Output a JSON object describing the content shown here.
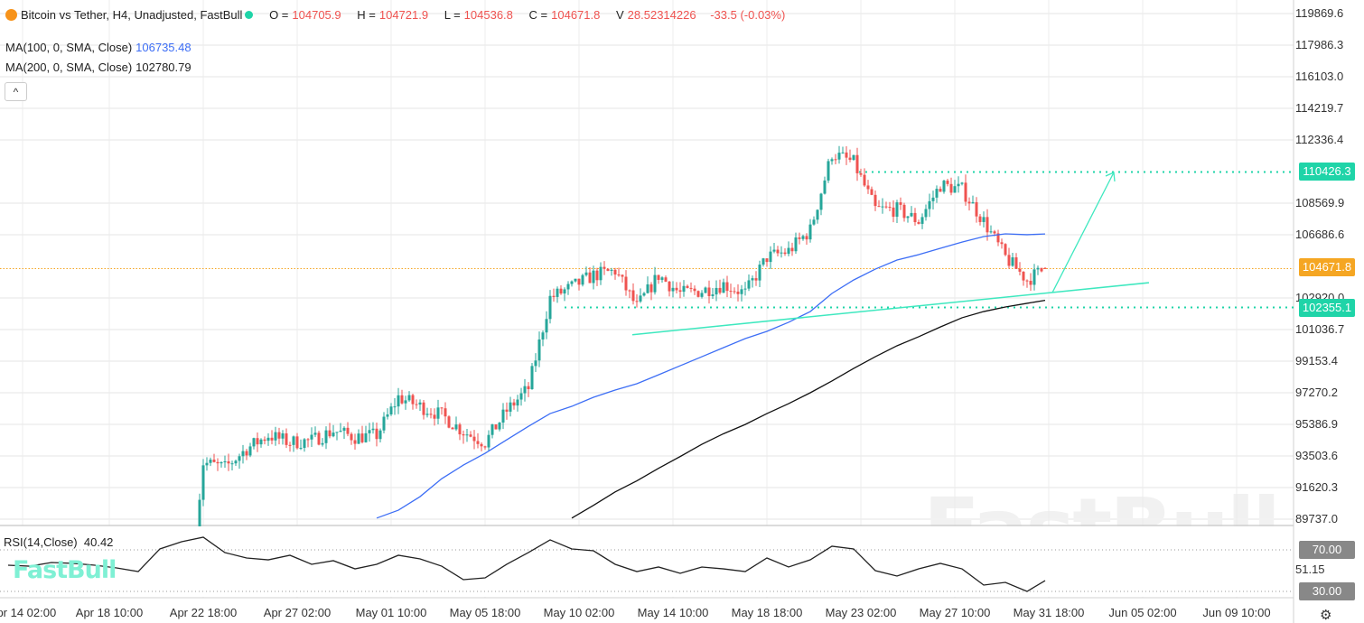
{
  "header": {
    "title": "Bitcoin vs Tether, H4, Unadjusted, FastBull",
    "open_label": "O =",
    "open": "104705.9",
    "high_label": "H =",
    "high": "104721.9",
    "low_label": "L =",
    "low": "104536.8",
    "close_label": "C =",
    "close": "104671.8",
    "volume_label": "V",
    "volume": "28.52314226",
    "change": "-33.5 (-0.03%)",
    "icon": "bitcoin-icon",
    "live_color": "#1fd4a8"
  },
  "indicators": {
    "ma100_label": "MA(100, 0, SMA, Close)",
    "ma100_value": "106735.48",
    "ma100_color": "#3d6ef5",
    "ma200_label": "MA(200, 0, SMA, Close)",
    "ma200_value": "102780.79",
    "ma200_color": "#111111",
    "collapse_label": "^",
    "rsi_label": "RSI(14,Close)",
    "rsi_value": "40.42"
  },
  "price_axis": [
    "119869.6",
    "117986.3",
    "116103.0",
    "114219.7",
    "112336.4",
    "110426.3",
    "108569.9",
    "106686.6",
    "104671.8",
    "102920.0",
    "102355.1",
    "101036.7",
    "99153.4",
    "97270.2",
    "95386.9",
    "93503.6",
    "91620.3",
    "89737.0"
  ],
  "rsi_axis": [
    "70.00",
    "51.15",
    "30.00"
  ],
  "price_tags": {
    "resistance": "110426.3",
    "last": "104671.8",
    "support": "102355.1",
    "resistance_color": "#1fd4a8",
    "last_color": "#f5a623",
    "support_color": "#1fd4a8",
    "rsi_tag_color": "#888888"
  },
  "time_axis": [
    "Apr 14 02:00",
    "Apr 18 10:00",
    "Apr 22 18:00",
    "Apr 27 02:00",
    "May 01 10:00",
    "May 05 18:00",
    "May 10 02:00",
    "May 14 10:00",
    "May 18 18:00",
    "May 23 02:00",
    "May 27 10:00",
    "May 31 18:00",
    "Jun 05 02:00",
    "Jun 09 10:00"
  ],
  "branding": {
    "logo": "FastBull",
    "watermark": "FastBull"
  },
  "settings_icon": "gear-icon",
  "chart_data": {
    "type": "candlestick",
    "timeframe": "H4",
    "up_color": "#26a69a",
    "down_color": "#ef5350",
    "y_range": [
      88800,
      120500
    ],
    "closes": [
      [
        "Apr 22 10:00",
        89200
      ],
      [
        "Apr 22 18:00",
        93100
      ],
      [
        "Apr 23 18:00",
        92800
      ],
      [
        "Apr 24 18:00",
        93930
      ],
      [
        "Apr 25 18:00",
        94740
      ],
      [
        "Apr 26 18:00",
        94310
      ],
      [
        "Apr 27 18:00",
        94420
      ],
      [
        "Apr 28 18:00",
        95010
      ],
      [
        "Apr 29 18:00",
        94630
      ],
      [
        "Apr 30 18:00",
        94740
      ],
      [
        "May 01 18:00",
        97000
      ],
      [
        "May 02 18:00",
        96460
      ],
      [
        "May 03 18:00",
        95930
      ],
      [
        "May 04 18:00",
        94960
      ],
      [
        "May 05 18:00",
        94310
      ],
      [
        "May 06 18:00",
        96200
      ],
      [
        "May 07 18:00",
        97540
      ],
      [
        "May 08 18:00",
        102920
      ],
      [
        "May 09 18:00",
        103570
      ],
      [
        "May 10 18:00",
        104270
      ],
      [
        "May 11 18:00",
        104540
      ],
      [
        "May 12 18:00",
        102380
      ],
      [
        "May 13 18:00",
        104270
      ],
      [
        "May 14 18:00",
        103190
      ],
      [
        "May 15 18:00",
        103350
      ],
      [
        "May 16 18:00",
        103730
      ],
      [
        "May 17 18:00",
        103190
      ],
      [
        "May 18 18:00",
        105340
      ],
      [
        "May 19 18:00",
        105720
      ],
      [
        "May 20 18:00",
        106960
      ],
      [
        "May 21 18:00",
        111530
      ],
      [
        "May 22 18:00",
        110990
      ],
      [
        "May 23 18:00",
        108190
      ],
      [
        "May 24 18:00",
        108190
      ],
      [
        "May 25 18:00",
        107500
      ],
      [
        "May 26 18:00",
        109650
      ],
      [
        "May 27 18:00",
        109380
      ],
      [
        "May 28 18:00",
        107500
      ],
      [
        "May 29 18:00",
        105340
      ],
      [
        "May 30 18:00",
        104000
      ],
      [
        "May 31 14:00",
        104671.8
      ]
    ],
    "ma100": [
      [
        "Apr 30 18:00",
        89800
      ],
      [
        "May 01 18:00",
        90270
      ],
      [
        "May 02 18:00",
        91080
      ],
      [
        "May 03 18:00",
        92150
      ],
      [
        "May 04 18:00",
        92960
      ],
      [
        "May 05 18:00",
        93660
      ],
      [
        "May 06 18:00",
        94470
      ],
      [
        "May 07 18:00",
        95270
      ],
      [
        "May 08 18:00",
        96030
      ],
      [
        "May 09 18:00",
        96460
      ],
      [
        "May 10 18:00",
        97000
      ],
      [
        "May 11 18:00",
        97430
      ],
      [
        "May 12 18:00",
        97810
      ],
      [
        "May 13 18:00",
        98340
      ],
      [
        "May 14 18:00",
        98880
      ],
      [
        "May 15 18:00",
        99420
      ],
      [
        "May 16 18:00",
        99960
      ],
      [
        "May 17 18:00",
        100500
      ],
      [
        "May 18 18:00",
        100930
      ],
      [
        "May 19 18:00",
        101470
      ],
      [
        "May 20 18:00",
        102110
      ],
      [
        "May 21 18:00",
        103190
      ],
      [
        "May 22 18:00",
        103990
      ],
      [
        "May 23 18:00",
        104640
      ],
      [
        "May 24 18:00",
        105180
      ],
      [
        "May 25 18:00",
        105500
      ],
      [
        "May 26 18:00",
        105880
      ],
      [
        "May 27 18:00",
        106250
      ],
      [
        "May 28 18:00",
        106580
      ],
      [
        "May 29 18:00",
        106740
      ],
      [
        "May 30 18:00",
        106690
      ],
      [
        "May 31 14:00",
        106735.48
      ]
    ],
    "ma200": [
      [
        "May 09 18:00",
        89800
      ],
      [
        "May 10 18:00",
        90560
      ],
      [
        "May 11 18:00",
        91360
      ],
      [
        "May 12 18:00",
        92020
      ],
      [
        "May 13 18:00",
        92770
      ],
      [
        "May 14 18:00",
        93470
      ],
      [
        "May 15 18:00",
        94200
      ],
      [
        "May 16 18:00",
        94830
      ],
      [
        "May 17 18:00",
        95380
      ],
      [
        "May 18 18:00",
        96030
      ],
      [
        "May 19 18:00",
        96620
      ],
      [
        "May 20 18:00",
        97270
      ],
      [
        "May 21 18:00",
        97970
      ],
      [
        "May 22 18:00",
        98720
      ],
      [
        "May 23 18:00",
        99420
      ],
      [
        "May 24 18:00",
        100070
      ],
      [
        "May 25 18:00",
        100610
      ],
      [
        "May 26 18:00",
        101190
      ],
      [
        "May 27 18:00",
        101740
      ],
      [
        "May 28 18:00",
        102110
      ],
      [
        "May 29 18:00",
        102380
      ],
      [
        "May 30 18:00",
        102600
      ],
      [
        "May 31 14:00",
        102780.79
      ]
    ],
    "horizontal_lines": [
      {
        "price": 110426.3,
        "from": "May 23 00:00"
      },
      {
        "price": 102355.1,
        "from": "May 09 10:00"
      },
      {
        "price": 104671.8,
        "from": "Apr 13 09:00",
        "style": "last-price"
      }
    ],
    "trendline": {
      "from": [
        "May 12 13:00",
        100730
      ],
      "to": [
        "Jun 05 09:00",
        103830
      ]
    },
    "arrow": {
      "from": [
        "May 31 22:00",
        103240
      ],
      "to": [
        "Jun 03 18:00",
        110400
      ]
    },
    "rsi": {
      "y_range": [
        25,
        90
      ],
      "levels": [
        70,
        30
      ],
      "points": [
        [
          "Apr 13 18:00",
          55.2
        ],
        [
          "Apr 14 18:00",
          54.3
        ],
        [
          "Apr 15 18:00",
          57.8
        ],
        [
          "Apr 16 18:00",
          57
        ],
        [
          "Apr 17 18:00",
          55.2
        ],
        [
          "Apr 18 18:00",
          52.6
        ],
        [
          "Apr 19 18:00",
          49.1
        ],
        [
          "Apr 20 18:00",
          70.9
        ],
        [
          "Apr 21 18:00",
          77.8
        ],
        [
          "Apr 22 18:00",
          82.2
        ],
        [
          "Apr 23 18:00",
          67.4
        ],
        [
          "Apr 24 18:00",
          62.2
        ],
        [
          "Apr 25 18:00",
          60.4
        ],
        [
          "Apr 26 18:00",
          64.8
        ],
        [
          "Apr 27 18:00",
          56.1
        ],
        [
          "Apr 28 18:00",
          59.6
        ],
        [
          "Apr 29 18:00",
          51.7
        ],
        [
          "Apr 30 18:00",
          56.1
        ],
        [
          "May 01 18:00",
          64.8
        ],
        [
          "May 02 18:00",
          61.3
        ],
        [
          "May 03 18:00",
          54.3
        ],
        [
          "May 04 18:00",
          41.3
        ],
        [
          "May 05 18:00",
          43
        ],
        [
          "May 06 18:00",
          56.1
        ],
        [
          "May 07 18:00",
          67.4
        ],
        [
          "May 08 18:00",
          79.6
        ],
        [
          "May 09 18:00",
          70.9
        ],
        [
          "May 10 18:00",
          69.1
        ],
        [
          "May 11 18:00",
          56.1
        ],
        [
          "May 12 18:00",
          49.1
        ],
        [
          "May 13 18:00",
          53.5
        ],
        [
          "May 14 18:00",
          47.4
        ],
        [
          "May 15 18:00",
          53.5
        ],
        [
          "May 16 18:00",
          51.7
        ],
        [
          "May 17 18:00",
          49.1
        ],
        [
          "May 18 18:00",
          62.2
        ],
        [
          "May 19 18:00",
          53.5
        ],
        [
          "May 20 18:00",
          60.4
        ],
        [
          "May 21 18:00",
          73.5
        ],
        [
          "May 22 18:00",
          70.9
        ],
        [
          "May 23 18:00",
          50
        ],
        [
          "May 24 18:00",
          44.8
        ],
        [
          "May 25 18:00",
          51.7
        ],
        [
          "May 26 18:00",
          57
        ],
        [
          "May 27 18:00",
          51.7
        ],
        [
          "May 28 18:00",
          36.1
        ],
        [
          "May 29 18:00",
          38.7
        ],
        [
          "May 30 18:00",
          30
        ],
        [
          "May 31 14:00",
          40.42
        ]
      ]
    }
  }
}
